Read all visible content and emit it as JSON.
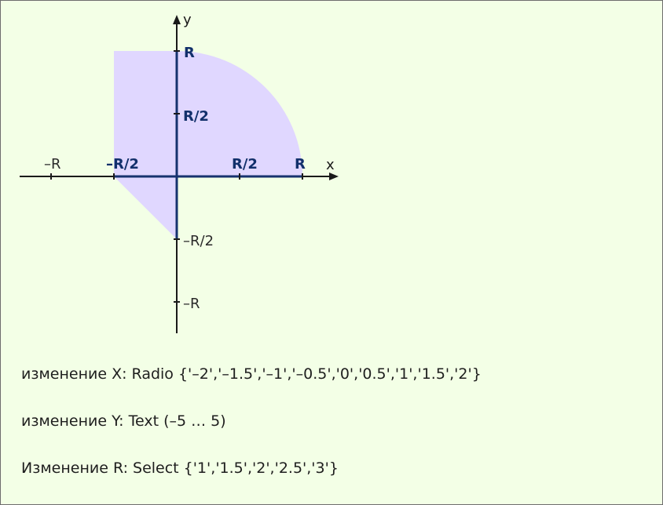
{
  "diagram": {
    "axis_x_label": "x",
    "axis_y_label": "y",
    "tick_labels": {
      "x_neg_r": "–R",
      "x_neg_half": "–R/2",
      "x_pos_half": "R/2",
      "x_pos_r": "R",
      "y_pos_r": "R",
      "y_pos_half": "R/2",
      "y_neg_half": "–R/2",
      "y_neg_r": "–R"
    },
    "area_color": "#e0d7ff",
    "highlight_color": "#16326e"
  },
  "task": {
    "line_x": "изменение X: Radio {'–2','–1.5','–1','–0.5','0','0.5','1','1.5','2'}",
    "line_y": "изменение Y: Text (–5 … 5)",
    "line_r": "Изменение R: Select {'1','1.5','2','2.5','3'}"
  }
}
